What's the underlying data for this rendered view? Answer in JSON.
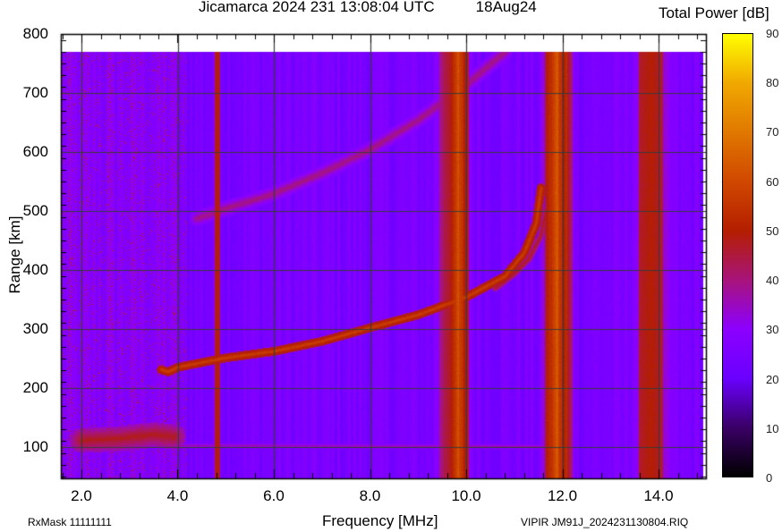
{
  "header": {
    "title": "Jicamarca 2024 231 13:08:04 UTC",
    "date": "18Aug24",
    "colorbar_title": "Total Power [dB]"
  },
  "footer": {
    "rxmask": "RxMask 11111111",
    "fileinfo": "VIPIR  JM91J_2024231130804.RIQ"
  },
  "chart_data": {
    "type": "heatmap",
    "title": "Jicamarca 2024 231 13:08:04 UTC    18Aug24",
    "xlabel": "Frequency [MHz]",
    "ylabel": "Range [km]",
    "xlim": [
      1.6,
      15.0
    ],
    "ylim": [
      50,
      800
    ],
    "data_ylim": [
      50,
      770
    ],
    "x_ticks": [
      "2.0",
      "4.0",
      "6.0",
      "8.0",
      "10.0",
      "12.0",
      "14.0"
    ],
    "x_tick_values": [
      2,
      4,
      6,
      8,
      10,
      12,
      14
    ],
    "y_ticks": [
      "100",
      "200",
      "300",
      "400",
      "500",
      "600",
      "700",
      "800"
    ],
    "y_tick_values": [
      100,
      200,
      300,
      400,
      500,
      600,
      700,
      800
    ],
    "grid": true,
    "colorbar": {
      "label": "Total Power [dB]",
      "range": [
        0,
        90
      ],
      "ticks": [
        "0",
        "10",
        "20",
        "30",
        "40",
        "50",
        "60",
        "70",
        "80",
        "90"
      ],
      "tick_values": [
        0,
        10,
        20,
        30,
        40,
        50,
        60,
        70,
        80,
        90
      ],
      "colormap": [
        {
          "v": 0,
          "c": "#000000"
        },
        {
          "v": 10,
          "c": "#3a0066"
        },
        {
          "v": 20,
          "c": "#6a00ff"
        },
        {
          "v": 30,
          "c": "#8c00ff"
        },
        {
          "v": 40,
          "c": "#a8147a"
        },
        {
          "v": 50,
          "c": "#b41e00"
        },
        {
          "v": 60,
          "c": "#d04800"
        },
        {
          "v": 70,
          "c": "#e07800"
        },
        {
          "v": 80,
          "c": "#f0a800"
        },
        {
          "v": 90,
          "c": "#ffff00"
        }
      ]
    },
    "background_db": 25,
    "interference_bands_mhz": [
      {
        "f": 4.82,
        "w": 0.05,
        "db": 50
      },
      {
        "f": 9.55,
        "w": 0.12,
        "db": 42
      },
      {
        "f": 9.72,
        "w": 0.1,
        "db": 50
      },
      {
        "f": 9.85,
        "w": 0.08,
        "db": 58
      },
      {
        "f": 9.95,
        "w": 0.1,
        "db": 50
      },
      {
        "f": 11.72,
        "w": 0.1,
        "db": 50
      },
      {
        "f": 11.88,
        "w": 0.1,
        "db": 58
      },
      {
        "f": 12.02,
        "w": 0.12,
        "db": 50
      },
      {
        "f": 12.15,
        "w": 0.06,
        "db": 42
      },
      {
        "f": 13.83,
        "w": 0.25,
        "db": 50
      }
    ],
    "traces": [
      {
        "name": "F-layer O-mode echo",
        "db": 58,
        "points": [
          [
            3.65,
            232
          ],
          [
            3.8,
            228
          ],
          [
            4.0,
            236
          ],
          [
            5.0,
            252
          ],
          [
            6.0,
            263
          ],
          [
            7.0,
            280
          ],
          [
            8.0,
            303
          ],
          [
            9.0,
            325
          ],
          [
            10.0,
            355
          ],
          [
            10.8,
            390
          ],
          [
            11.2,
            430
          ],
          [
            11.45,
            480
          ],
          [
            11.55,
            540
          ]
        ]
      },
      {
        "name": "F-layer X-mode echo",
        "db": 48,
        "points": [
          [
            10.6,
            370
          ],
          [
            11.0,
            395
          ],
          [
            11.3,
            420
          ],
          [
            11.55,
            460
          ],
          [
            11.65,
            500
          ]
        ]
      },
      {
        "name": "F-layer multi-hop echo",
        "db": 40,
        "points": [
          [
            4.4,
            488
          ],
          [
            5.0,
            505
          ],
          [
            6.0,
            530
          ],
          [
            7.0,
            565
          ],
          [
            8.0,
            605
          ],
          [
            9.0,
            655
          ],
          [
            10.0,
            715
          ],
          [
            10.8,
            770
          ]
        ]
      },
      {
        "name": "E/Es-layer echo",
        "db": 48,
        "points": [
          [
            2.0,
            112
          ],
          [
            2.8,
            115
          ],
          [
            3.5,
            122
          ],
          [
            3.9,
            118
          ]
        ]
      },
      {
        "name": "Low-range weak echo",
        "db": 36,
        "points": [
          [
            4.0,
            103
          ],
          [
            6.0,
            103
          ],
          [
            8.0,
            102
          ],
          [
            10.0,
            102
          ],
          [
            12.0,
            101
          ]
        ]
      }
    ]
  }
}
